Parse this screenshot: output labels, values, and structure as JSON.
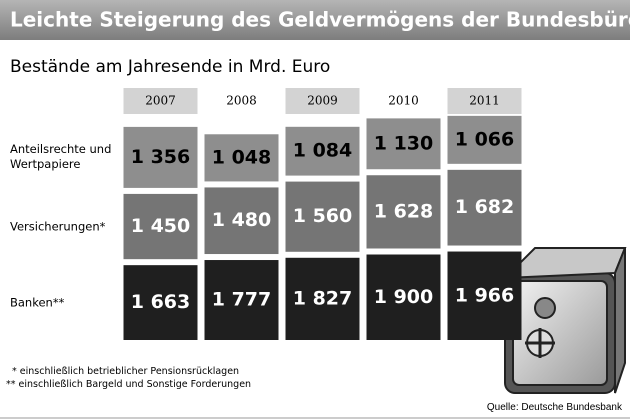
{
  "chart_data": {
    "type": "stacked-bar",
    "title": "Leichte Steigerung des Geldvermögens der Bundesbürger",
    "subtitle": "Bestände am Jahresende in Mrd. Euro",
    "categories": [
      "2007",
      "2008",
      "2009",
      "2010",
      "2011"
    ],
    "series": [
      {
        "name": "Anteilsrechte und Wertpapiere",
        "color": "#8e8e8e",
        "label_color": "#000000",
        "values": [
          1356,
          1048,
          1084,
          1130,
          1066
        ],
        "value_labels": [
          "1 356",
          "1 048",
          "1 084",
          "1 130",
          "1 066"
        ]
      },
      {
        "name": "Versicherungen*",
        "color": "#757575",
        "label_color": "#ffffff",
        "values": [
          1450,
          1480,
          1560,
          1628,
          1682
        ],
        "value_labels": [
          "1 450",
          "1 480",
          "1 560",
          "1 628",
          "1 682"
        ]
      },
      {
        "name": "Banken**",
        "color": "#1f1f1f",
        "label_color": "#ffffff",
        "values": [
          1663,
          1777,
          1827,
          1900,
          1966
        ],
        "value_labels": [
          "1 663",
          "1 777",
          "1 827",
          "1 900",
          "1 966"
        ]
      }
    ],
    "footnotes": [
      "* einschließlich betrieblicher Pensionsrücklagen",
      "** einschließlich Bargeld und Sonstige Forderungen"
    ],
    "source": "Quelle: Deutsche Bundesbank"
  }
}
